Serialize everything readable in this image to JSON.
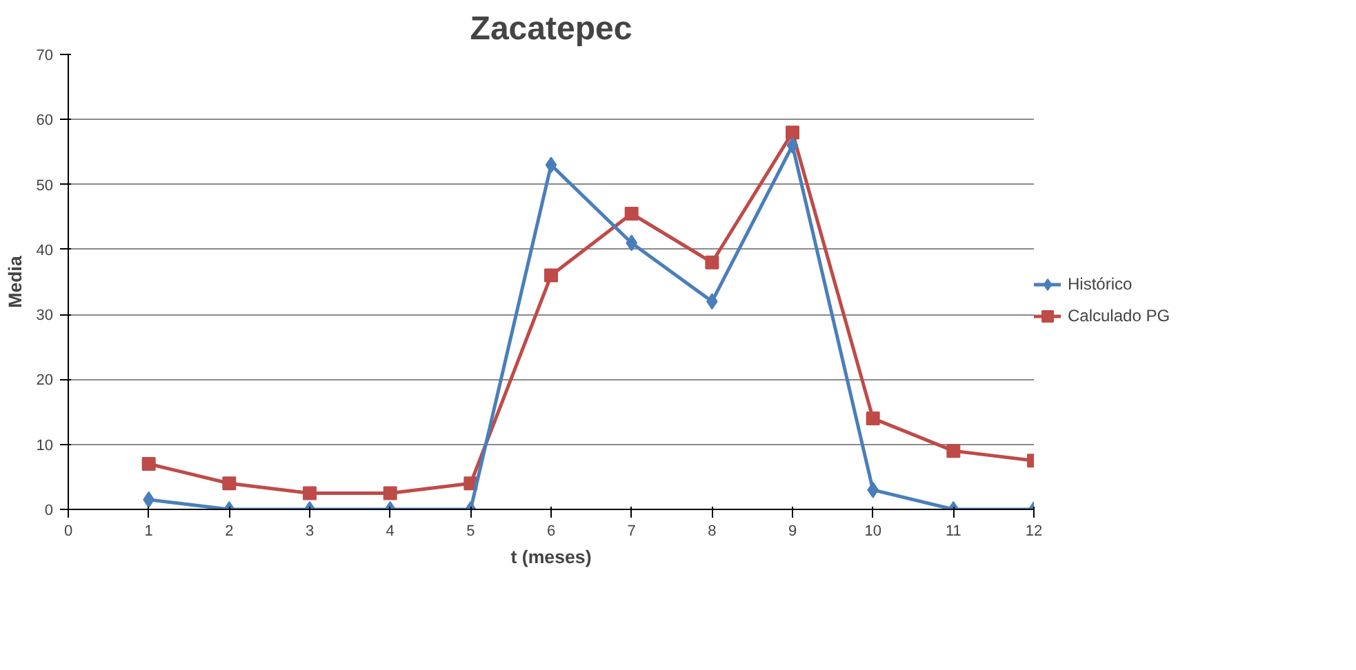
{
  "chart_data": {
    "type": "line",
    "title": "Zacatepec",
    "xlabel": "t (meses)",
    "ylabel": "Media",
    "x": [
      1,
      2,
      3,
      4,
      5,
      6,
      7,
      8,
      9,
      10,
      11,
      12
    ],
    "series": [
      {
        "name": "Histórico",
        "color": "#4a7ebb",
        "marker": "diamond",
        "values": [
          1.5,
          0,
          0,
          0,
          0,
          53,
          41,
          32,
          56,
          3,
          0,
          0
        ]
      },
      {
        "name": "Calculado PG",
        "color": "#be4b48",
        "marker": "square",
        "values": [
          7,
          4,
          2.5,
          2.5,
          4,
          36,
          45.5,
          38,
          58,
          14,
          9,
          7.5
        ]
      }
    ],
    "xlim": [
      0,
      12
    ],
    "xticks": [
      0,
      1,
      2,
      3,
      4,
      5,
      6,
      7,
      8,
      9,
      10,
      11,
      12
    ],
    "ylim": [
      0,
      70
    ],
    "yticks": [
      0,
      10,
      20,
      30,
      40,
      50,
      60,
      70
    ],
    "grid": "y",
    "legend": "right"
  }
}
